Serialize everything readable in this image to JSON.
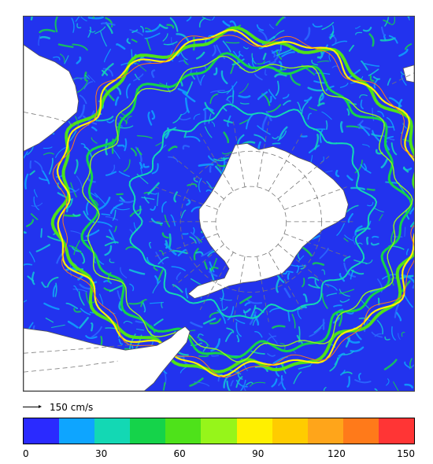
{
  "map": {
    "type": "current-speed-map",
    "projection": "south-polar-stereographic",
    "colors": {
      "ocean_low": "#2233ee",
      "land": "#ffffff",
      "coast": "#555555",
      "grid": "#777777"
    }
  },
  "scale": {
    "label": "150 cm/s"
  },
  "colorbar": {
    "segments": [
      "#2a2aff",
      "#0ea5ff",
      "#13d8b4",
      "#15d34a",
      "#4ee21a",
      "#96f51a",
      "#fff000",
      "#ffcc00",
      "#ffa51a",
      "#ff7a1a",
      "#ff3535"
    ],
    "ticks": [
      {
        "label": "0",
        "value": 0
      },
      {
        "label": "30",
        "value": 30
      },
      {
        "label": "60",
        "value": 60
      },
      {
        "label": "90",
        "value": 90
      },
      {
        "label": "120",
        "value": 120
      },
      {
        "label": "150",
        "value": 150
      }
    ],
    "min": 0,
    "max": 150
  }
}
